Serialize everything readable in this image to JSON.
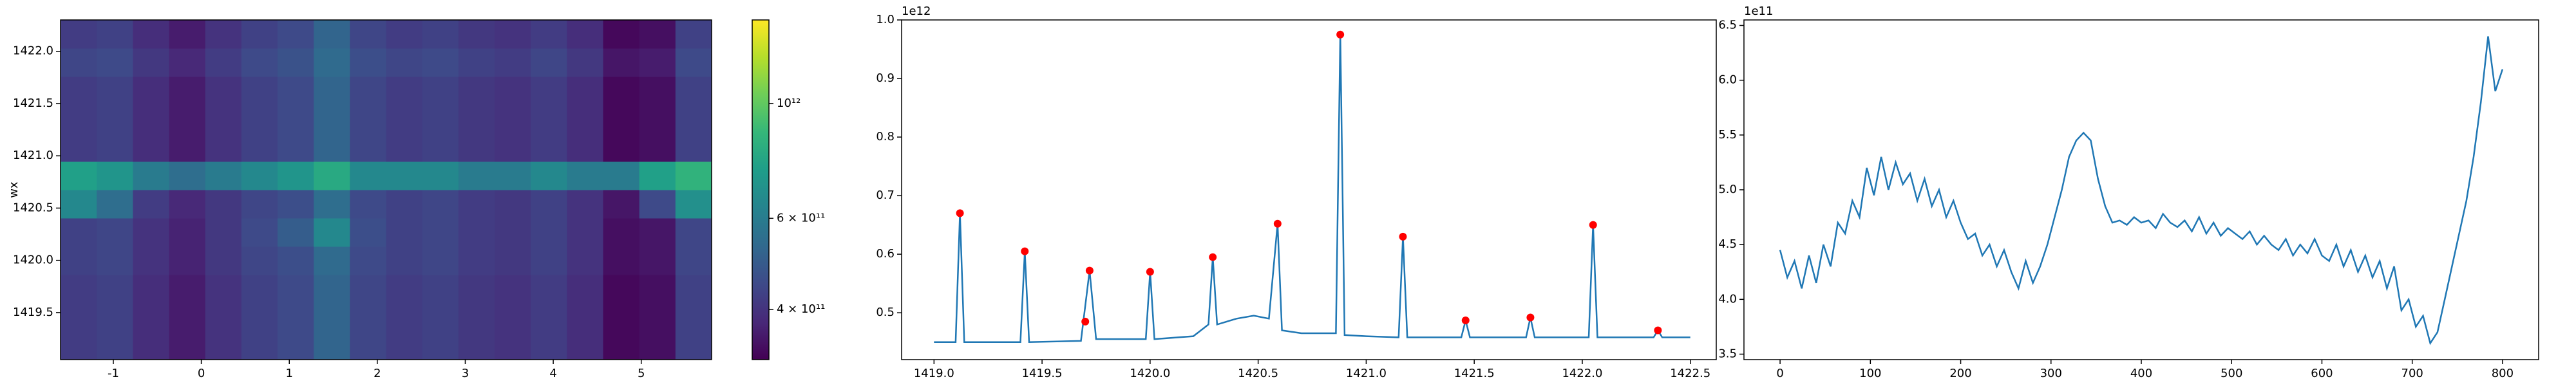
{
  "chart_data": [
    {
      "type": "heatmap",
      "ylabel": "wx",
      "colormap": "viridis",
      "colorbar_log": true,
      "xlim": [
        -1.6,
        5.8
      ],
      "ylim": [
        1419.05,
        1422.3
      ],
      "xticks": [
        -1,
        0,
        1,
        2,
        3,
        4,
        5
      ],
      "yticks": [
        1419.5,
        {
          "value": 1420,
          "label": "1420.0"
        },
        1420.5,
        {
          "value": 1421,
          "label": "1421.0"
        },
        1421.5,
        {
          "value": 1422,
          "label": "1422.0"
        }
      ],
      "clim": [
        320000000000.0,
        1450000000000.0
      ],
      "colorbar_ticks": [
        {
          "value": 400000000000.0,
          "label": "4 × 10¹¹"
        },
        {
          "value": 600000000000.0,
          "label": "6 × 10¹¹"
        },
        {
          "value": 1000000000000.0,
          "label": "10¹²"
        }
      ],
      "z": [
        [
          420000000000.0,
          430000000000.0,
          390000000000.0,
          360000000000.0,
          400000000000.0,
          430000000000.0,
          450000000000.0,
          520000000000.0,
          440000000000.0,
          420000000000.0,
          430000000000.0,
          410000000000.0,
          400000000000.0,
          420000000000.0,
          390000000000.0,
          330000000000.0,
          340000000000.0,
          430000000000.0
        ],
        [
          420000000000.0,
          430000000000.0,
          390000000000.0,
          360000000000.0,
          400000000000.0,
          430000000000.0,
          450000000000.0,
          520000000000.0,
          440000000000.0,
          420000000000.0,
          430000000000.0,
          410000000000.0,
          400000000000.0,
          420000000000.0,
          390000000000.0,
          330000000000.0,
          340000000000.0,
          430000000000.0
        ],
        [
          420000000000.0,
          430000000000.0,
          390000000000.0,
          360000000000.0,
          400000000000.0,
          430000000000.0,
          450000000000.0,
          520000000000.0,
          440000000000.0,
          420000000000.0,
          430000000000.0,
          410000000000.0,
          400000000000.0,
          420000000000.0,
          390000000000.0,
          330000000000.0,
          340000000000.0,
          430000000000.0
        ],
        [
          430000000000.0,
          440000000000.0,
          400000000000.0,
          370000000000.0,
          410000000000.0,
          440000000000.0,
          460000000000.0,
          540000000000.0,
          450000000000.0,
          430000000000.0,
          440000000000.0,
          420000000000.0,
          410000000000.0,
          430000000000.0,
          400000000000.0,
          340000000000.0,
          350000000000.0,
          440000000000.0
        ],
        [
          430000000000.0,
          440000000000.0,
          400000000000.0,
          370000000000.0,
          410000000000.0,
          450000000000.0,
          500000000000.0,
          650000000000.0,
          460000000000.0,
          430000000000.0,
          440000000000.0,
          420000000000.0,
          410000000000.0,
          430000000000.0,
          400000000000.0,
          340000000000.0,
          350000000000.0,
          440000000000.0
        ],
        [
          650000000000.0,
          550000000000.0,
          420000000000.0,
          380000000000.0,
          410000000000.0,
          440000000000.0,
          460000000000.0,
          550000000000.0,
          450000000000.0,
          430000000000.0,
          440000000000.0,
          420000000000.0,
          410000000000.0,
          430000000000.0,
          400000000000.0,
          350000000000.0,
          450000000000.0,
          680000000000.0
        ],
        [
          750000000000.0,
          700000000000.0,
          600000000000.0,
          550000000000.0,
          600000000000.0,
          650000000000.0,
          700000000000.0,
          800000000000.0,
          650000000000.0,
          650000000000.0,
          650000000000.0,
          600000000000.0,
          600000000000.0,
          650000000000.0,
          600000000000.0,
          600000000000.0,
          750000000000.0,
          850000000000.0
        ],
        [
          420000000000.0,
          430000000000.0,
          390000000000.0,
          360000000000.0,
          400000000000.0,
          430000000000.0,
          450000000000.0,
          520000000000.0,
          440000000000.0,
          420000000000.0,
          430000000000.0,
          410000000000.0,
          400000000000.0,
          420000000000.0,
          390000000000.0,
          330000000000.0,
          340000000000.0,
          430000000000.0
        ],
        [
          420000000000.0,
          430000000000.0,
          390000000000.0,
          360000000000.0,
          400000000000.0,
          430000000000.0,
          450000000000.0,
          520000000000.0,
          440000000000.0,
          420000000000.0,
          430000000000.0,
          410000000000.0,
          400000000000.0,
          420000000000.0,
          390000000000.0,
          330000000000.0,
          340000000000.0,
          430000000000.0
        ],
        [
          420000000000.0,
          430000000000.0,
          390000000000.0,
          360000000000.0,
          400000000000.0,
          430000000000.0,
          450000000000.0,
          520000000000.0,
          440000000000.0,
          420000000000.0,
          430000000000.0,
          410000000000.0,
          400000000000.0,
          420000000000.0,
          390000000000.0,
          330000000000.0,
          340000000000.0,
          430000000000.0
        ],
        [
          440000000000.0,
          450000000000.0,
          410000000000.0,
          380000000000.0,
          420000000000.0,
          450000000000.0,
          470000000000.0,
          540000000000.0,
          460000000000.0,
          440000000000.0,
          450000000000.0,
          430000000000.0,
          420000000000.0,
          440000000000.0,
          410000000000.0,
          350000000000.0,
          360000000000.0,
          450000000000.0
        ],
        [
          420000000000.0,
          430000000000.0,
          390000000000.0,
          360000000000.0,
          400000000000.0,
          430000000000.0,
          450000000000.0,
          520000000000.0,
          440000000000.0,
          420000000000.0,
          430000000000.0,
          410000000000.0,
          400000000000.0,
          420000000000.0,
          390000000000.0,
          330000000000.0,
          340000000000.0,
          430000000000.0
        ]
      ]
    },
    {
      "type": "line",
      "y_offset_label": "1e12",
      "xlim": [
        1418.85,
        1422.62
      ],
      "ylim": [
        0.42,
        1.0
      ],
      "xticks": [
        {
          "value": 1419,
          "label": "1419.0"
        },
        1419.5,
        {
          "value": 1420,
          "label": "1420.0"
        },
        1420.5,
        {
          "value": 1421,
          "label": "1421.0"
        },
        1421.5,
        {
          "value": 1422,
          "label": "1422.0"
        },
        1422.5
      ],
      "yticks": [
        0.5,
        0.6,
        0.7,
        0.8,
        0.9,
        {
          "value": 1,
          "label": "1.0"
        }
      ],
      "series": [
        {
          "color": "#1f77b4",
          "style": "line",
          "x": [
            1419.0,
            1419.1,
            1419.12,
            1419.14,
            1419.4,
            1419.42,
            1419.44,
            1419.68,
            1419.72,
            1419.75,
            1419.98,
            1420.0,
            1420.02,
            1420.2,
            1420.27,
            1420.29,
            1420.31,
            1420.4,
            1420.48,
            1420.55,
            1420.59,
            1420.61,
            1420.7,
            1420.86,
            1420.88,
            1420.9,
            1421.0,
            1421.15,
            1421.17,
            1421.19,
            1421.44,
            1421.46,
            1421.48,
            1421.74,
            1421.76,
            1421.78,
            1422.03,
            1422.05,
            1422.07,
            1422.33,
            1422.35,
            1422.37,
            1422.5
          ],
          "values": [
            0.45,
            0.45,
            0.67,
            0.45,
            0.45,
            0.605,
            0.45,
            0.452,
            0.572,
            0.455,
            0.455,
            0.57,
            0.455,
            0.46,
            0.48,
            0.595,
            0.48,
            0.49,
            0.495,
            0.49,
            0.652,
            0.47,
            0.465,
            0.465,
            0.975,
            0.462,
            0.46,
            0.458,
            0.63,
            0.458,
            0.458,
            0.487,
            0.458,
            0.458,
            0.492,
            0.458,
            0.458,
            0.65,
            0.458,
            0.458,
            0.47,
            0.458,
            0.458
          ]
        },
        {
          "color": "#ff0000",
          "style": "markers",
          "x": [
            1419.12,
            1419.42,
            1419.7,
            1419.72,
            1420.0,
            1420.29,
            1420.59,
            1420.88,
            1421.17,
            1421.46,
            1421.76,
            1422.05,
            1422.35
          ],
          "values": [
            0.67,
            0.605,
            0.485,
            0.572,
            0.57,
            0.595,
            0.652,
            0.975,
            0.63,
            0.487,
            0.492,
            0.65,
            0.47
          ]
        }
      ]
    },
    {
      "type": "line",
      "y_offset_label": "1e11",
      "xlim": [
        -40,
        840
      ],
      "ylim": [
        3.45,
        6.55
      ],
      "xticks": [
        0,
        100,
        200,
        300,
        400,
        500,
        600,
        700,
        800
      ],
      "yticks": [
        3.5,
        {
          "value": 4,
          "label": "4.0"
        },
        4.5,
        {
          "value": 5,
          "label": "5.0"
        },
        5.5,
        {
          "value": 6,
          "label": "6.0"
        },
        6.5
      ],
      "series": [
        {
          "color": "#1f77b4",
          "style": "line",
          "x": [
            0,
            8,
            16,
            24,
            32,
            40,
            48,
            56,
            64,
            72,
            80,
            88,
            96,
            104,
            112,
            120,
            128,
            136,
            144,
            152,
            160,
            168,
            176,
            184,
            192,
            200,
            208,
            216,
            224,
            232,
            240,
            248,
            256,
            264,
            272,
            280,
            288,
            296,
            304,
            312,
            320,
            328,
            336,
            344,
            352,
            360,
            368,
            376,
            384,
            392,
            400,
            408,
            416,
            424,
            432,
            440,
            448,
            456,
            464,
            472,
            480,
            488,
            496,
            504,
            512,
            520,
            528,
            536,
            544,
            552,
            560,
            568,
            576,
            584,
            592,
            600,
            608,
            616,
            624,
            632,
            640,
            648,
            656,
            664,
            672,
            680,
            688,
            696,
            704,
            712,
            720,
            728,
            736,
            744,
            752,
            760,
            768,
            776,
            784,
            792,
            800
          ],
          "values": [
            4.45,
            4.2,
            4.35,
            4.1,
            4.4,
            4.15,
            4.5,
            4.3,
            4.7,
            4.6,
            4.9,
            4.75,
            5.2,
            4.95,
            5.3,
            5.0,
            5.25,
            5.05,
            5.15,
            4.9,
            5.1,
            4.85,
            5.0,
            4.75,
            4.9,
            4.7,
            4.55,
            4.6,
            4.4,
            4.5,
            4.3,
            4.45,
            4.25,
            4.1,
            4.35,
            4.15,
            4.3,
            4.5,
            4.75,
            5.0,
            5.3,
            5.45,
            5.52,
            5.45,
            5.1,
            4.85,
            4.7,
            4.72,
            4.68,
            4.75,
            4.7,
            4.72,
            4.65,
            4.78,
            4.7,
            4.66,
            4.72,
            4.62,
            4.75,
            4.6,
            4.7,
            4.58,
            4.65,
            4.6,
            4.55,
            4.62,
            4.5,
            4.58,
            4.5,
            4.45,
            4.55,
            4.4,
            4.5,
            4.42,
            4.55,
            4.4,
            4.35,
            4.5,
            4.3,
            4.45,
            4.25,
            4.4,
            4.2,
            4.35,
            4.1,
            4.3,
            3.9,
            4.0,
            3.75,
            3.85,
            3.6,
            3.7,
            4.0,
            4.3,
            4.6,
            4.9,
            5.3,
            5.8,
            6.4,
            5.9,
            6.1
          ]
        }
      ]
    }
  ]
}
